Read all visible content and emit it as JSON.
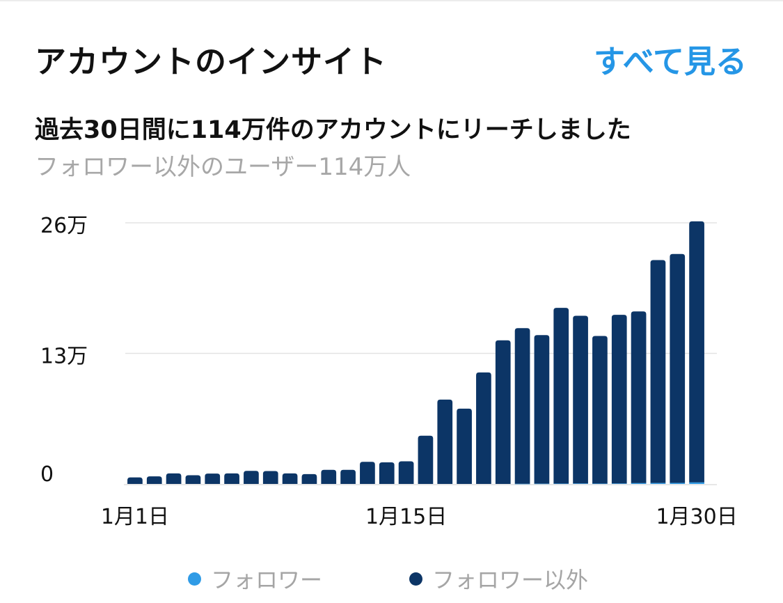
{
  "header": {
    "title": "アカウントのインサイト",
    "see_all_label": "すべて見る"
  },
  "summary": {
    "headline": "過去30日間に114万件のアカウントにリーチしました",
    "subline": "フォロワー以外のユーザー114万人"
  },
  "colors": {
    "accent": "#2596e6",
    "followers": "#2f9be6",
    "non_followers": "#0c3566",
    "grid": "#e3e3e3"
  },
  "chart_data": {
    "type": "bar",
    "stacked": true,
    "x": [
      1,
      2,
      3,
      4,
      5,
      6,
      7,
      8,
      9,
      10,
      11,
      12,
      13,
      14,
      15,
      16,
      17,
      18,
      19,
      20,
      21,
      22,
      23,
      24,
      25,
      26,
      27,
      28,
      29,
      30
    ],
    "x_tick_labels": [
      {
        "x": 1,
        "label": "1月1日"
      },
      {
        "x": 15,
        "label": "1月15日"
      },
      {
        "x": 30,
        "label": "1月30日"
      }
    ],
    "y_ticks": [
      {
        "value": 0,
        "label": "0"
      },
      {
        "value": 130000,
        "label": "13万"
      },
      {
        "value": 260000,
        "label": "26万"
      }
    ],
    "ylim": [
      0,
      260000
    ],
    "grid": true,
    "legend_position": "bottom",
    "series": [
      {
        "name": "フォロワー",
        "color": "#2f9be6",
        "values": [
          0,
          0,
          0,
          0,
          0,
          0,
          0,
          0,
          0,
          0,
          0,
          0,
          0,
          0,
          0,
          0,
          0,
          0,
          0,
          0,
          100,
          200,
          300,
          400,
          300,
          400,
          800,
          900,
          1000,
          1500
        ]
      },
      {
        "name": "フォロワー以外",
        "color": "#0c3566",
        "values": [
          6500,
          7500,
          10500,
          8700,
          10300,
          10500,
          13000,
          12800,
          10500,
          9800,
          14000,
          14000,
          22000,
          21500,
          22500,
          48000,
          84000,
          75000,
          111000,
          143000,
          155000,
          148000,
          175000,
          167000,
          147000,
          168000,
          171000,
          222000,
          228000,
          260000
        ]
      }
    ]
  }
}
